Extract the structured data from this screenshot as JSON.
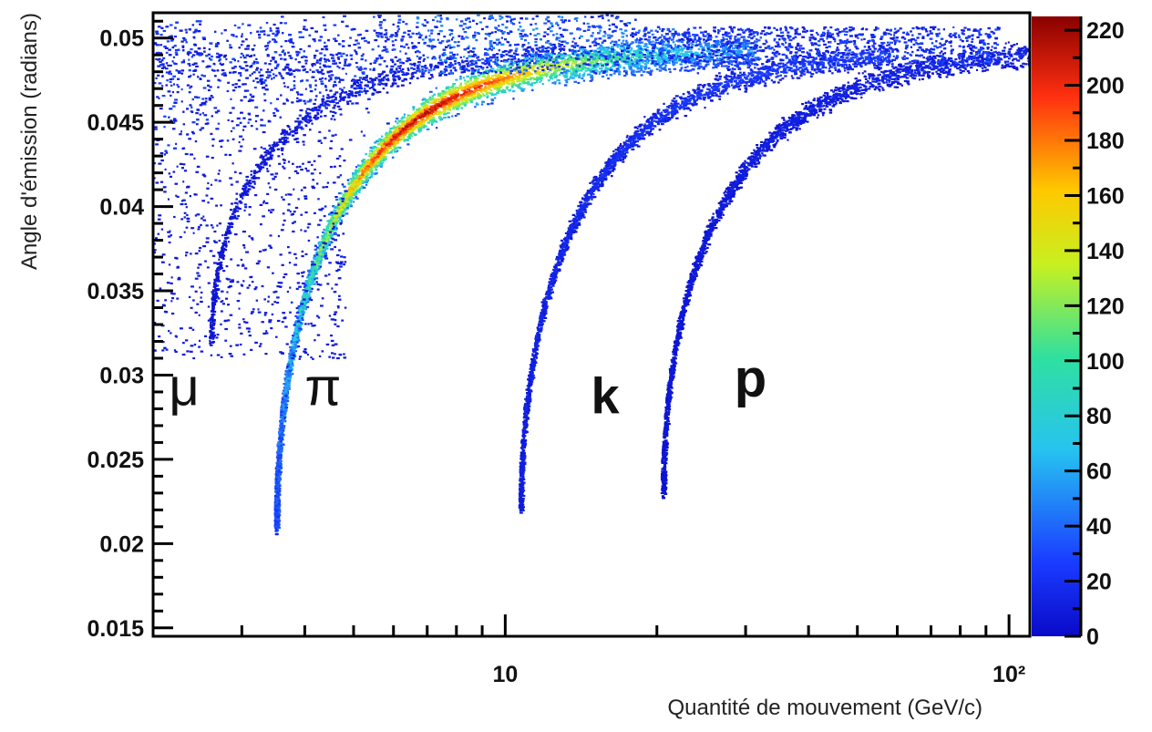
{
  "chart_data": {
    "type": "heatmap",
    "title": "",
    "xlabel": "Quantité de mouvement (GeV/c)",
    "ylabel": "Angle d'émission (radians)",
    "x_scale": "log",
    "xlim": [
      2.0,
      110
    ],
    "ylim": [
      0.0145,
      0.0515
    ],
    "x_ticks": [
      {
        "value": 10,
        "label": "10"
      },
      {
        "value": 100,
        "label": "10²"
      }
    ],
    "y_ticks": [
      0.015,
      0.02,
      0.025,
      0.03,
      0.035,
      0.04,
      0.045,
      0.05
    ],
    "y_tick_labels": [
      "0.015",
      "0.02",
      "0.025",
      "0.03",
      "0.035",
      "0.04",
      "0.045",
      "0.05"
    ],
    "colorbar": {
      "range": [
        0,
        225
      ],
      "ticks": [
        0,
        20,
        40,
        60,
        80,
        100,
        120,
        140,
        160,
        180,
        200,
        220
      ],
      "tick_labels": [
        "0",
        "20",
        "40",
        "60",
        "80",
        "100",
        "120",
        "140",
        "160",
        "180",
        "200",
        "220"
      ],
      "colormap": "rainbow"
    },
    "grid": false,
    "bands": [
      {
        "label": "μ",
        "threshold_momentum": 2.6,
        "threshold_angle": 0.032,
        "peak_density": 25
      },
      {
        "label": "π",
        "threshold_momentum": 3.5,
        "threshold_angle": 0.021,
        "peak_density": 220
      },
      {
        "label": "k",
        "threshold_momentum": 10.7,
        "threshold_angle": 0.022,
        "peak_density": 45
      },
      {
        "label": "p",
        "threshold_momentum": 20.5,
        "threshold_angle": 0.023,
        "peak_density": 25
      }
    ],
    "saturation_angle": 0.0495,
    "annotations": [
      {
        "text": "μ",
        "x": 2.15,
        "y": 0.0293
      },
      {
        "text": "π",
        "x": 4.0,
        "y": 0.0293
      },
      {
        "text": "k",
        "x": 14.8,
        "y": 0.0288
      },
      {
        "text": "p",
        "x": 28.5,
        "y": 0.0298
      }
    ]
  }
}
